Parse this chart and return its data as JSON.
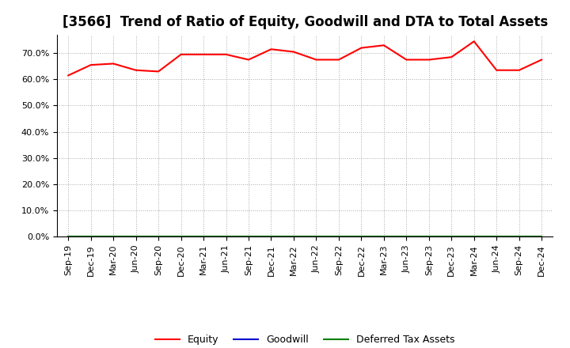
{
  "title": "[3566]  Trend of Ratio of Equity, Goodwill and DTA to Total Assets",
  "x_labels": [
    "Sep-19",
    "Dec-19",
    "Mar-20",
    "Jun-20",
    "Sep-20",
    "Dec-20",
    "Mar-21",
    "Jun-21",
    "Sep-21",
    "Dec-21",
    "Mar-22",
    "Jun-22",
    "Sep-22",
    "Dec-22",
    "Mar-23",
    "Jun-23",
    "Sep-23",
    "Dec-23",
    "Mar-24",
    "Jun-24",
    "Sep-24",
    "Dec-24"
  ],
  "equity": [
    61.5,
    65.5,
    66.0,
    63.5,
    63.0,
    69.5,
    69.5,
    69.5,
    67.5,
    71.5,
    70.5,
    67.5,
    67.5,
    72.0,
    73.0,
    67.5,
    67.5,
    68.5,
    74.5,
    63.5,
    63.5,
    67.5
  ],
  "goodwill": [
    0.0,
    0.0,
    0.0,
    0.0,
    0.0,
    0.0,
    0.0,
    0.0,
    0.0,
    0.0,
    0.0,
    0.0,
    0.0,
    0.0,
    0.0,
    0.0,
    0.0,
    0.0,
    0.0,
    0.0,
    0.0,
    0.0
  ],
  "dta": [
    0.0,
    0.0,
    0.0,
    0.0,
    0.0,
    0.0,
    0.0,
    0.0,
    0.0,
    0.0,
    0.0,
    0.0,
    0.0,
    0.0,
    0.0,
    0.0,
    0.0,
    0.0,
    0.0,
    0.0,
    0.0,
    0.0
  ],
  "equity_color": "#FF0000",
  "goodwill_color": "#0000CD",
  "dta_color": "#008000",
  "ylim": [
    0,
    77
  ],
  "yticks": [
    0,
    10,
    20,
    30,
    40,
    50,
    60,
    70
  ],
  "ytick_labels": [
    "0.0%",
    "10.0%",
    "20.0%",
    "30.0%",
    "40.0%",
    "50.0%",
    "60.0%",
    "70.0%"
  ],
  "bg_color": "#FFFFFF",
  "grid_color": "#AAAAAA",
  "title_fontsize": 12,
  "tick_fontsize": 8,
  "legend_labels": [
    "Equity",
    "Goodwill",
    "Deferred Tax Assets"
  ],
  "line_width": 1.5
}
